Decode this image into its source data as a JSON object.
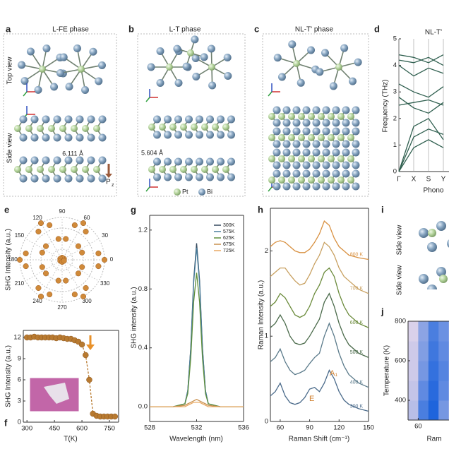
{
  "panels": {
    "a": {
      "label": "a",
      "title": "L-FE phase",
      "top_view": "Top view",
      "side_view": "Side view",
      "spacing": "6.111 Å",
      "polarization": "P",
      "polarization_sub": "z"
    },
    "b": {
      "label": "b",
      "title": "L-T phase",
      "spacing": "5.604 Å",
      "legend": [
        "Pt",
        "Bi"
      ]
    },
    "c": {
      "label": "c",
      "title": "NL-T' phase"
    },
    "i": {
      "label": "i",
      "side_view_1": "Side view",
      "side_view_2": "Side view"
    }
  },
  "chart_data": [
    {
      "type": "line",
      "panel_label": "d",
      "title": "NL-T'",
      "y_label": "Frequency (THz)",
      "x_label": "Phono",
      "categories": [
        "Γ",
        "X",
        "S",
        "Y"
      ],
      "ylim": [
        0,
        5
      ],
      "yticks": [
        0,
        1,
        2,
        3,
        4,
        5
      ],
      "color": "#2f5f4f",
      "series": [
        {
          "values": [
            0,
            0.9,
            1.2,
            0.9
          ]
        },
        {
          "values": [
            0,
            1.3,
            1.6,
            1.4
          ]
        },
        {
          "values": [
            0,
            1.7,
            2.0,
            1.2
          ]
        },
        {
          "values": [
            2.5,
            2.6,
            2.7,
            2.5
          ]
        },
        {
          "values": [
            2.8,
            2.4,
            2.2,
            2.6
          ]
        },
        {
          "values": [
            3.3,
            3.0,
            2.8,
            3.2
          ]
        },
        {
          "values": [
            4.0,
            3.6,
            3.9,
            3.7
          ]
        },
        {
          "values": [
            4.2,
            4.1,
            4.3,
            4.0
          ]
        },
        {
          "values": [
            4.4,
            4.3,
            4.1,
            4.4
          ]
        }
      ]
    },
    {
      "type": "polar",
      "panel_label": "e",
      "y_label": "SHG Intensity (a.u.)",
      "color": "#d08a3a",
      "rlim": [
        0,
        1
      ],
      "angle_ticks": [
        0,
        30,
        60,
        90,
        120,
        150,
        180,
        210,
        240,
        270,
        300,
        330
      ],
      "angles": [
        0,
        10,
        20,
        30,
        40,
        50,
        60,
        70,
        80,
        90,
        100,
        110,
        120,
        130,
        140,
        150,
        160,
        170,
        180,
        190,
        200,
        210,
        220,
        230,
        240,
        250,
        260,
        270,
        280,
        290,
        300,
        310,
        320,
        330,
        340,
        350
      ],
      "values": [
        1,
        0.87,
        0.5,
        0.05,
        0.5,
        0.87,
        1,
        0.87,
        0.5,
        0.05,
        0.5,
        0.87,
        1,
        0.87,
        0.5,
        0.05,
        0.5,
        0.87,
        1,
        0.87,
        0.5,
        0.05,
        0.5,
        0.87,
        1,
        0.87,
        0.5,
        0.05,
        0.5,
        0.87,
        1,
        0.87,
        0.5,
        0.05,
        0.5,
        0.87
      ]
    },
    {
      "type": "line",
      "panel_label": "f",
      "x_label": "T(K)",
      "y_label": "SHG Intensity (a.u.)",
      "markers": true,
      "color": "#b87a30",
      "xlim": [
        280,
        800
      ],
      "xticks": [
        300,
        450,
        600,
        750
      ],
      "ylim": [
        0,
        13
      ],
      "yticks": [
        0,
        3,
        6,
        9,
        12
      ],
      "x": [
        300,
        320,
        340,
        360,
        380,
        400,
        420,
        440,
        460,
        480,
        500,
        520,
        540,
        560,
        580,
        600,
        620,
        640,
        660,
        680,
        700,
        720,
        740,
        760,
        780
      ],
      "values": [
        12,
        12,
        12.1,
        12,
        12,
        12,
        12,
        12,
        11.9,
        12,
        11.9,
        11.8,
        11.8,
        11.6,
        11.4,
        11,
        9.5,
        6,
        1.2,
        0.9,
        0.8,
        0.8,
        0.8,
        0.8,
        0.8
      ]
    },
    {
      "type": "line",
      "panel_label": "g",
      "x_label": "Wavelength (nm)",
      "y_label": "SHG intensity (a.u.)",
      "legend": "upper right",
      "xlim": [
        528,
        536
      ],
      "xticks": [
        528,
        532,
        536
      ],
      "ylim": [
        -0.1,
        1.3
      ],
      "yticks": [
        {
          "value": 0,
          "label": "0.0"
        },
        0.4,
        0.8,
        1.2
      ],
      "x": [
        528,
        530,
        531,
        531.25,
        531.5,
        531.75,
        532,
        532.25,
        532.5,
        532.75,
        533,
        534,
        536
      ],
      "series": [
        {
          "name": "300K",
          "color": "#34495e",
          "values": [
            0,
            0,
            0.02,
            0.11,
            0.4,
            0.86,
            1.11,
            0.86,
            0.4,
            0.11,
            0.02,
            0,
            0
          ]
        },
        {
          "name": "575K",
          "color": "#4a7f9e",
          "values": [
            0,
            0,
            0.02,
            0.11,
            0.39,
            0.84,
            1.08,
            0.84,
            0.39,
            0.11,
            0.02,
            0,
            0
          ]
        },
        {
          "name": "625K",
          "color": "#5f8f3c",
          "values": [
            0,
            0,
            0.02,
            0.09,
            0.33,
            0.71,
            0.91,
            0.71,
            0.33,
            0.09,
            0.02,
            0,
            0
          ]
        },
        {
          "name": "675K",
          "color": "#c8904e",
          "values": [
            0,
            0,
            0.01,
            0.02,
            0.03,
            0.04,
            0.05,
            0.04,
            0.03,
            0.02,
            0.01,
            0,
            0
          ]
        },
        {
          "name": "725K",
          "color": "#e8a862",
          "values": [
            0,
            0,
            0,
            0.01,
            0.02,
            0.03,
            0.03,
            0.03,
            0.02,
            0.01,
            0,
            0,
            0
          ]
        }
      ]
    },
    {
      "type": "line",
      "panel_label": "h",
      "x_label": "Raman Shift (cm⁻¹)",
      "y_label": "Raman Intensity (a.u.)",
      "annotations": [
        "E",
        "A₁"
      ],
      "xlim": [
        50,
        150
      ],
      "xticks": [
        60,
        90,
        120,
        150
      ],
      "ylim": [
        0,
        2.5
      ],
      "yticks": [
        0,
        1,
        2
      ],
      "x": [
        50,
        55,
        60,
        65,
        70,
        75,
        80,
        85,
        90,
        95,
        100,
        105,
        110,
        115,
        120,
        125,
        130,
        140,
        150
      ],
      "series": [
        {
          "name": "300 K",
          "color": "#4a6a8a",
          "values": [
            0.3,
            0.35,
            0.45,
            0.3,
            0.22,
            0.2,
            0.22,
            0.28,
            0.38,
            0.4,
            0.35,
            0.45,
            0.6,
            0.5,
            0.35,
            0.25,
            0.2,
            0.15,
            0.12
          ]
        },
        {
          "name": "400 K",
          "color": "#5a7a8a",
          "values": [
            0.7,
            0.75,
            0.85,
            0.7,
            0.6,
            0.55,
            0.57,
            0.6,
            0.68,
            0.75,
            0.8,
            1.0,
            1.15,
            1.0,
            0.8,
            0.65,
            0.55,
            0.45,
            0.4
          ]
        },
        {
          "name": "500 K",
          "color": "#4a6a4a",
          "values": [
            1.1,
            1.15,
            1.25,
            1.15,
            1.0,
            0.92,
            0.9,
            0.92,
            1.0,
            1.1,
            1.2,
            1.4,
            1.5,
            1.35,
            1.15,
            1.0,
            0.9,
            0.8,
            0.75
          ]
        },
        {
          "name": "600 K",
          "color": "#6a8a3a",
          "values": [
            1.35,
            1.4,
            1.5,
            1.45,
            1.35,
            1.25,
            1.22,
            1.25,
            1.35,
            1.5,
            1.6,
            1.75,
            1.8,
            1.7,
            1.5,
            1.35,
            1.25,
            1.15,
            1.1
          ]
        },
        {
          "name": "700 K",
          "color": "#c8a060",
          "values": [
            1.7,
            1.75,
            1.8,
            1.8,
            1.72,
            1.65,
            1.6,
            1.62,
            1.72,
            1.85,
            1.95,
            2.1,
            2.05,
            1.95,
            1.8,
            1.7,
            1.65,
            1.55,
            1.5
          ]
        },
        {
          "name": "800 K",
          "color": "#d89040",
          "values": [
            2.05,
            2.1,
            2.12,
            2.1,
            2.05,
            2.0,
            1.98,
            1.98,
            2.02,
            2.1,
            2.2,
            2.35,
            2.3,
            2.15,
            2.05,
            2.0,
            1.95,
            1.92,
            1.9
          ]
        }
      ]
    },
    {
      "type": "heatmap",
      "panel_label": "j",
      "y_label": "Temperature (K)",
      "x_label": "Ram",
      "xlim": [
        50,
        100
      ],
      "xticks": [
        60
      ],
      "ylim": [
        300,
        800
      ],
      "yticks": [
        400,
        600,
        800
      ],
      "x": [
        55,
        65,
        75,
        85,
        95
      ],
      "y": [
        350,
        450,
        550,
        650,
        750
      ],
      "z": [
        [
          0.3,
          0.8,
          1.0,
          0.6,
          0.3
        ],
        [
          0.25,
          0.7,
          0.95,
          0.7,
          0.35
        ],
        [
          0.2,
          0.6,
          0.9,
          0.75,
          0.4
        ],
        [
          0.2,
          0.55,
          0.85,
          0.7,
          0.45
        ],
        [
          0.15,
          0.5,
          0.8,
          0.65,
          0.4
        ]
      ]
    }
  ]
}
